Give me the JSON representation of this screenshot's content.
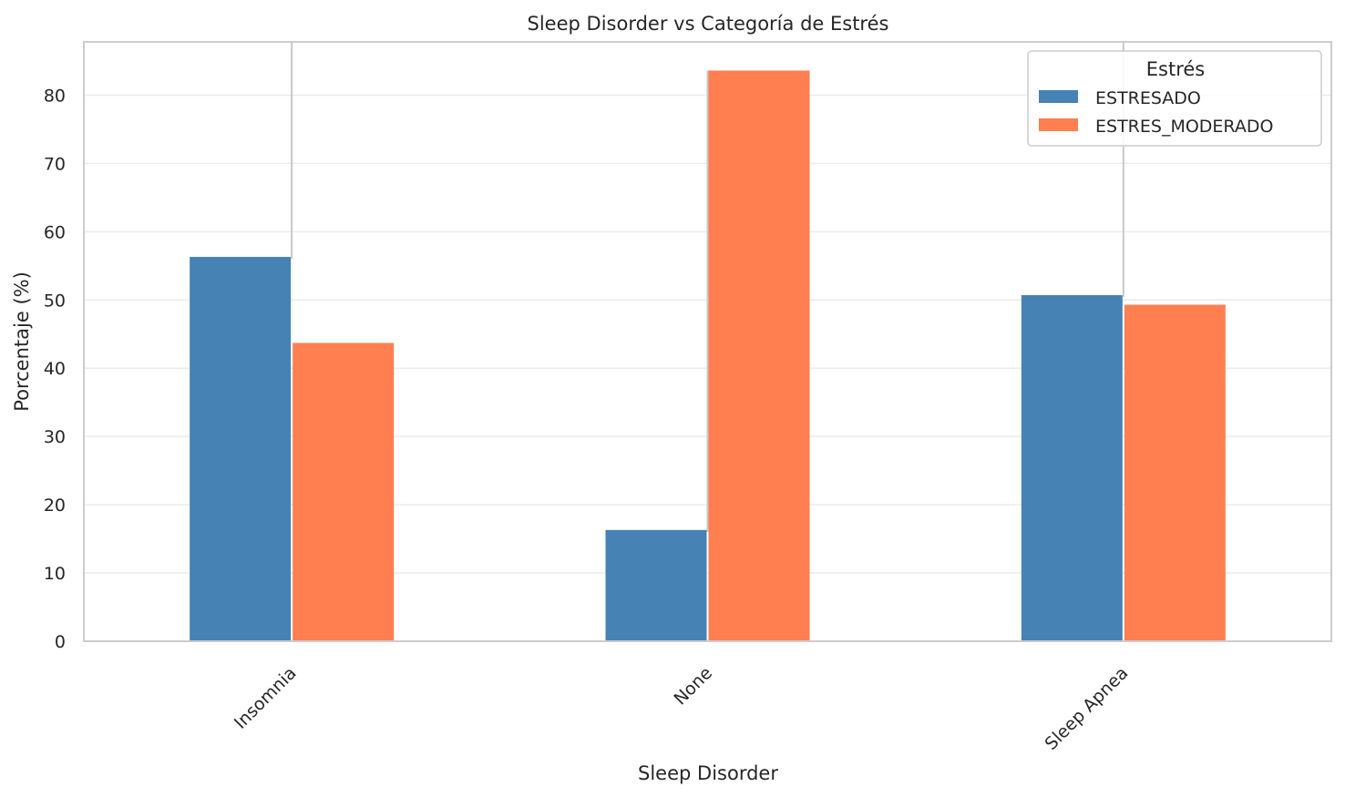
{
  "chart_data": {
    "type": "bar",
    "title": "Sleep Disorder vs Categoría de Estrés",
    "xlabel": "Sleep Disorder",
    "ylabel": "Porcentaje (%)",
    "categories": [
      "Insomnia",
      "None",
      "Sleep Apnea"
    ],
    "series": [
      {
        "name": "ESTRESADO",
        "values": [
          56.3,
          16.3,
          50.7
        ],
        "color": "#4682b4"
      },
      {
        "name": "ESTRES_MODERADO",
        "values": [
          43.7,
          83.6,
          49.3
        ],
        "color": "#ff7f50"
      }
    ],
    "ylim": [
      0,
      87.8
    ],
    "yticks": [
      0,
      10,
      20,
      30,
      40,
      50,
      60,
      70,
      80
    ],
    "grid": true,
    "legend": {
      "title": "Estrés",
      "placement": "top-right"
    },
    "error_bar_tops": [
      87.8,
      83.6,
      87.8
    ]
  }
}
